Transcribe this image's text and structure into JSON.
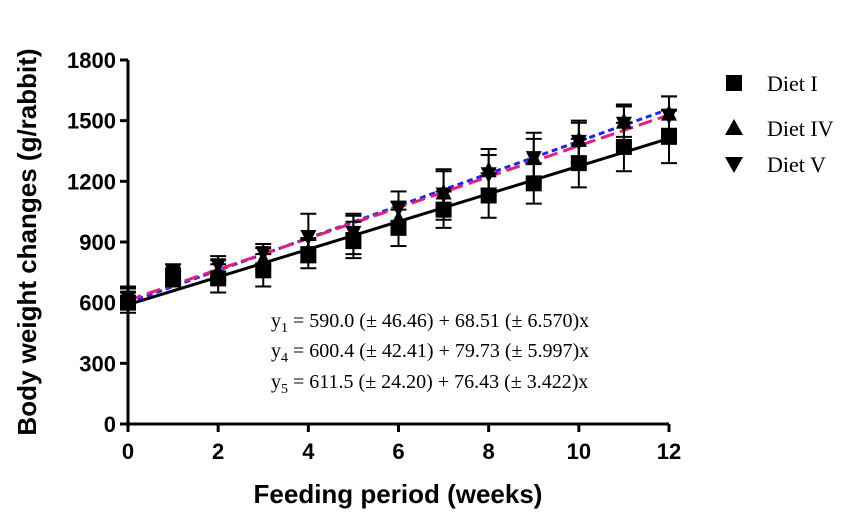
{
  "chart_data": {
    "type": "scatter",
    "xlabel": "Feeding period (weeks)",
    "ylabel": "Body weight changes (g/rabbit)",
    "xlim": [
      0,
      12
    ],
    "ylim": [
      0,
      1800
    ],
    "xticks": [
      0,
      2,
      4,
      6,
      8,
      10,
      12
    ],
    "yticks": [
      0,
      300,
      600,
      900,
      1200,
      1500,
      1800
    ],
    "grid": false,
    "legend_position": "top-right",
    "series": [
      {
        "name": "Diet I",
        "marker": "square",
        "color": "#000000",
        "x": [
          0,
          1,
          2,
          3,
          4,
          5,
          6,
          7,
          8,
          9,
          10,
          11,
          12
        ],
        "y": [
          600,
          720,
          720,
          760,
          840,
          910,
          970,
          1060,
          1130,
          1190,
          1290,
          1370,
          1420
        ],
        "err": [
          50,
          40,
          70,
          80,
          70,
          90,
          90,
          90,
          110,
          100,
          120,
          120,
          130
        ],
        "fit": {
          "intercept": 590.0,
          "slope": 68.51,
          "color": "#000000",
          "dash": "none"
        }
      },
      {
        "name": "Diet IV",
        "marker": "triangle-up",
        "color": "#000000",
        "x": [
          0,
          1,
          2,
          3,
          4,
          5,
          6,
          7,
          8,
          9,
          10,
          11,
          12
        ],
        "y": [
          630,
          730,
          760,
          820,
          860,
          950,
          1020,
          1150,
          1260,
          1320,
          1410,
          1500,
          1540
        ],
        "err": [
          50,
          40,
          50,
          50,
          60,
          80,
          80,
          110,
          100,
          120,
          90,
          80,
          80
        ],
        "fit": {
          "intercept": 600.4,
          "slope": 79.73,
          "color": "#2222ee",
          "dash": "6,4"
        }
      },
      {
        "name": "Diet V",
        "marker": "triangle-down",
        "color": "#000000",
        "x": [
          0,
          1,
          2,
          3,
          4,
          5,
          6,
          7,
          8,
          9,
          10,
          11,
          12
        ],
        "y": [
          620,
          750,
          780,
          840,
          920,
          940,
          1060,
          1130,
          1230,
          1310,
          1390,
          1480,
          1520
        ],
        "err": [
          50,
          40,
          50,
          50,
          120,
          100,
          90,
          120,
          100,
          100,
          100,
          90,
          100
        ],
        "fit": {
          "intercept": 611.5,
          "slope": 76.43,
          "color": "#e0207a",
          "dash": "14,6"
        }
      }
    ]
  },
  "equations": [
    {
      "lhs": "y",
      "sub": "1",
      "rhs": " = 590.0 (± 46.46) + 68.51 (± 6.570)x"
    },
    {
      "lhs": "y",
      "sub": "4",
      "rhs": " = 600.4 (± 42.41) + 79.73 (± 5.997)x"
    },
    {
      "lhs": "y",
      "sub": "5",
      "rhs": " =  611.5 (± 24.20) + 76.43 (± 3.422)x"
    }
  ]
}
